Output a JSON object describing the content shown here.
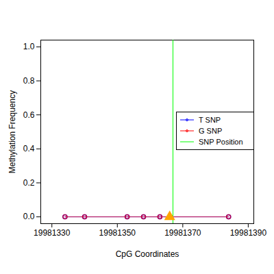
{
  "chart_data": {
    "type": "line",
    "xlabel": "CpG Coordinates",
    "ylabel": "Methylation Frequency",
    "x": [
      19981334,
      19981340,
      19981353,
      19981358,
      19981363,
      19981384
    ],
    "series": [
      {
        "name": "T SNP",
        "color": "#0000ff",
        "marker": "circle",
        "values": [
          0,
          0,
          0,
          0,
          0,
          0
        ]
      },
      {
        "name": "G SNP",
        "color": "#ff0000",
        "marker": "circle",
        "values": [
          0,
          0,
          0,
          0,
          0,
          0
        ]
      },
      {
        "name": "SNP Position",
        "color": "#00ff00",
        "type": "vline",
        "x": [
          19981367
        ]
      }
    ],
    "snp_marker": {
      "x": 19981366,
      "y": 0,
      "color": "#ffa500",
      "marker": "triangle"
    },
    "xlim": [
      19981326.6,
      19981391.7
    ],
    "ylim": [
      -0.04,
      1.04
    ],
    "xticks": [
      19981330,
      19981350,
      19981370,
      19981390
    ],
    "yticks": [
      {
        "value": 0,
        "label": "0.0"
      },
      {
        "value": 0.2,
        "label": "0.2"
      },
      {
        "value": 0.4,
        "label": "0.4"
      },
      {
        "value": 0.6,
        "label": "0.6"
      },
      {
        "value": 0.8,
        "label": "0.8"
      },
      {
        "value": 1,
        "label": "1.0"
      }
    ],
    "legend": "right",
    "grid": false
  }
}
